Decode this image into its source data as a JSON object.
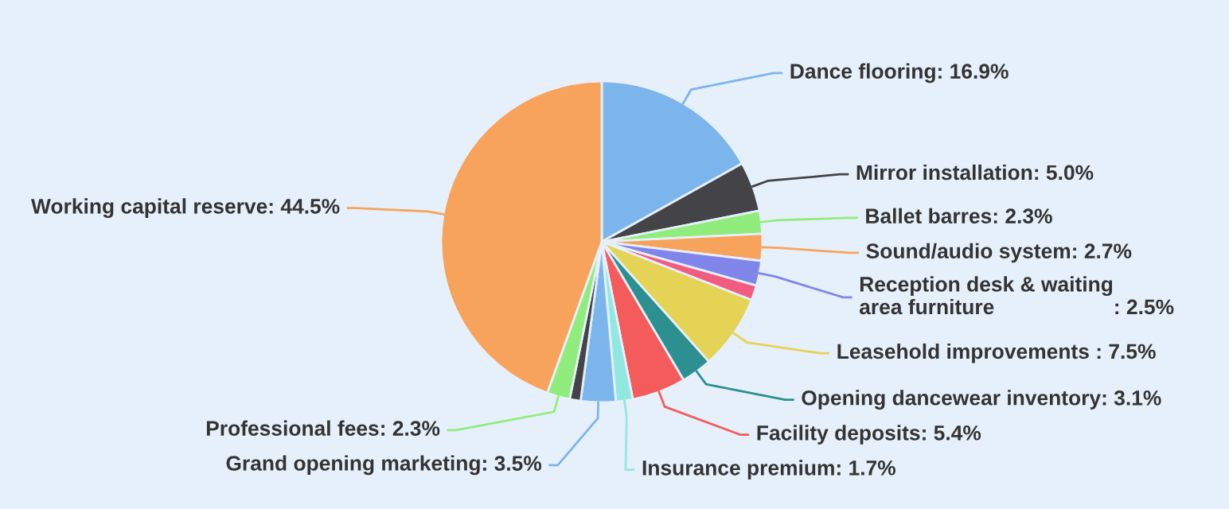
{
  "chart_data": {
    "type": "pie",
    "categories": [
      "Dance flooring",
      "Mirror installation",
      "Ballet barres",
      "Sound/audio system",
      "Reception desk & waiting area furniture",
      null,
      "Leasehold improvements ",
      "Opening dancewear inventory",
      "Facility deposits",
      "Insurance premium",
      "Grand opening marketing",
      null,
      "Professional fees",
      "Working capital reserve"
    ],
    "values": [
      16.9,
      5.0,
      2.3,
      2.7,
      2.5,
      1.5,
      7.5,
      3.1,
      5.4,
      1.7,
      3.5,
      1.1,
      2.3,
      44.5
    ],
    "value_labels": [
      ": 16.9%",
      ": 5.0%",
      ": 2.3%",
      ": 2.7%",
      ": 2.5%",
      null,
      ": 7.5%",
      ": 3.1%",
      ": 5.4%",
      ": 1.7%",
      ": 3.5%",
      null,
      ": 2.3%",
      ": 44.5%"
    ],
    "colors": [
      "#7cb5ec",
      "#434348",
      "#90ed7d",
      "#f7a35c",
      "#8085e9",
      "#f15c80",
      "#e4d354",
      "#2b908f",
      "#f45b5b",
      "#91e8e1",
      "#7cb5ec",
      "#434348",
      "#90ed7d",
      "#f7a35c"
    ]
  }
}
